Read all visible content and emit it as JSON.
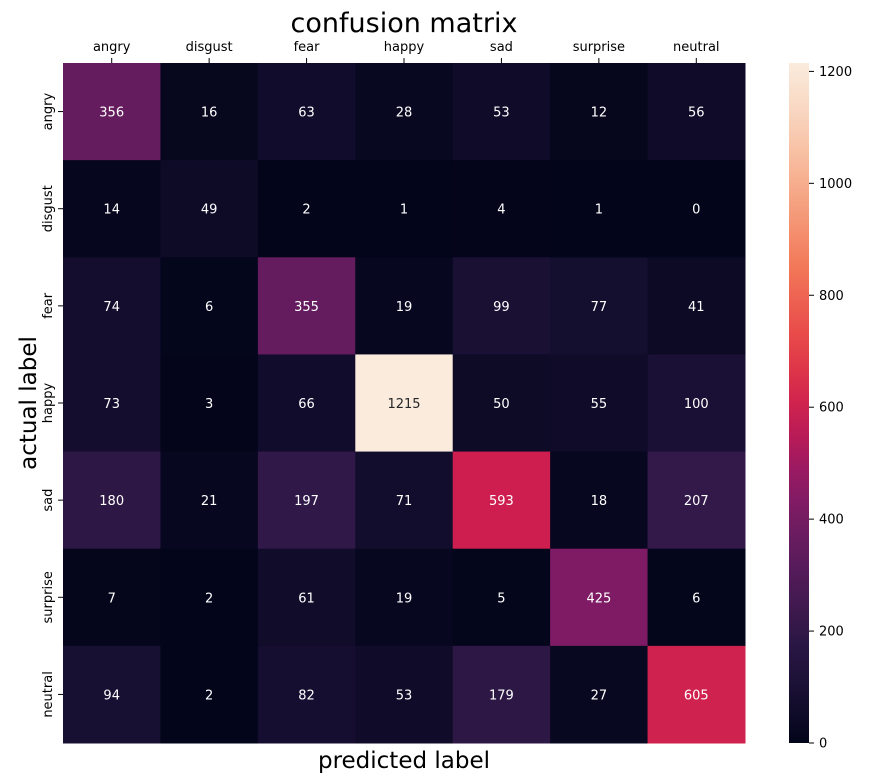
{
  "chart_data": {
    "type": "heatmap",
    "title": "confusion matrix",
    "xlabel": "predicted label",
    "ylabel": "actual label",
    "x_categories": [
      "angry",
      "disgust",
      "fear",
      "happy",
      "sad",
      "surprise",
      "neutral"
    ],
    "y_categories": [
      "angry",
      "disgust",
      "fear",
      "happy",
      "sad",
      "surprise",
      "neutral"
    ],
    "values": [
      [
        356,
        16,
        63,
        28,
        53,
        12,
        56
      ],
      [
        14,
        49,
        2,
        1,
        4,
        1,
        0
      ],
      [
        74,
        6,
        355,
        19,
        99,
        77,
        41
      ],
      [
        73,
        3,
        66,
        1215,
        50,
        55,
        100
      ],
      [
        180,
        21,
        197,
        71,
        593,
        18,
        207
      ],
      [
        7,
        2,
        61,
        19,
        5,
        425,
        6
      ],
      [
        94,
        2,
        82,
        53,
        179,
        27,
        605
      ]
    ],
    "x_ticks_position": "top",
    "colormap": "rocket",
    "colorbar": {
      "min": 0,
      "max": 1215,
      "ticks": [
        0,
        200,
        400,
        600,
        800,
        1000,
        1200
      ]
    }
  }
}
